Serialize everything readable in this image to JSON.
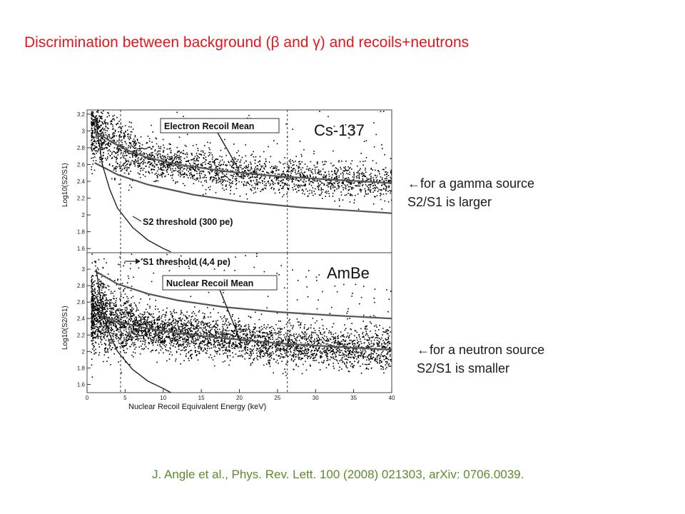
{
  "slide": {
    "title": "Discrimination between background (β and γ) and recoils+neutrons",
    "note_top": {
      "line1": "←for a gamma source",
      "line2": "S2/S1 is larger"
    },
    "note_bottom": {
      "line1": "←for a neutron source",
      "line2": "S2/S1 is smaller"
    },
    "citation": "J. Angle et al., Phys. Rev. Lett. 100 (2008) 021303, arXiv: 0706.0039."
  },
  "colors": {
    "title": "#e4161b",
    "citation": "#5c8a2e",
    "points": "#000000",
    "curves": "#555555"
  },
  "chart_data": [
    {
      "type": "scatter",
      "panel_label": "Cs-137",
      "ylabel": "Log10(S2/S1)",
      "xlabel": "",
      "xlim": [
        0,
        40
      ],
      "ylim": [
        1.55,
        3.25
      ],
      "yticks": [
        1.6,
        1.8,
        2.0,
        2.2,
        2.4,
        2.6,
        2.8,
        3.0,
        3.2
      ],
      "ytick_labels": [
        "1.6",
        "1.8",
        "2",
        "2.2",
        "2.4",
        "2.6",
        "2.8",
        "3",
        "3.2"
      ],
      "thresholds_x": [
        4.4,
        26.3
      ],
      "annotations": {
        "mean_box": "Electron Recoil Mean",
        "s2_threshold": "S2 threshold (300 pe)"
      },
      "curves": {
        "mean": [
          [
            1,
            3.0
          ],
          [
            3,
            2.88
          ],
          [
            5,
            2.78
          ],
          [
            8,
            2.68
          ],
          [
            12,
            2.6
          ],
          [
            18,
            2.52
          ],
          [
            25,
            2.46
          ],
          [
            32,
            2.42
          ],
          [
            40,
            2.38
          ]
        ],
        "lower_band": [
          [
            1,
            2.62
          ],
          [
            4,
            2.48
          ],
          [
            8,
            2.36
          ],
          [
            14,
            2.24
          ],
          [
            20,
            2.16
          ],
          [
            28,
            2.09
          ],
          [
            35,
            2.05
          ],
          [
            40,
            2.02
          ]
        ],
        "s2_threshold": [
          [
            1.2,
            3.1
          ],
          [
            2,
            2.6
          ],
          [
            3,
            2.3
          ],
          [
            4,
            2.08
          ],
          [
            6,
            1.85
          ],
          [
            8,
            1.7
          ],
          [
            10,
            1.6
          ],
          [
            11,
            1.56
          ]
        ]
      },
      "point_cloud": {
        "n": 2600,
        "center_curve": "mean",
        "spread": 0.11,
        "x_range": [
          0.5,
          40
        ]
      }
    },
    {
      "type": "scatter",
      "panel_label": "AmBe",
      "ylabel": "Log10(S2/S1)",
      "xlabel": "Nuclear Recoil Equivalent Energy (keV)",
      "xlim": [
        0,
        40
      ],
      "ylim": [
        1.5,
        3.2
      ],
      "xticks": [
        0,
        5,
        10,
        15,
        20,
        25,
        30,
        35,
        40
      ],
      "xtick_labels": [
        "0",
        "5",
        "10",
        "15",
        "20",
        "25",
        "30",
        "35",
        "40"
      ],
      "yticks": [
        1.6,
        1.8,
        2.0,
        2.2,
        2.4,
        2.6,
        2.8,
        3.0
      ],
      "ytick_labels": [
        "1.6",
        "1.8",
        "2",
        "2.2",
        "2.4",
        "2.6",
        "2.8",
        "3"
      ],
      "thresholds_x": [
        4.4,
        26.3
      ],
      "annotations": {
        "mean_box": "Nuclear Recoil Mean",
        "s1_threshold": "S1 threshold (4.4 pe)"
      },
      "curves": {
        "er_mean": [
          [
            1,
            2.98
          ],
          [
            4,
            2.82
          ],
          [
            8,
            2.7
          ],
          [
            12,
            2.62
          ],
          [
            18,
            2.54
          ],
          [
            25,
            2.48
          ],
          [
            32,
            2.44
          ],
          [
            40,
            2.4
          ]
        ],
        "nr_mean": [
          [
            1,
            2.46
          ],
          [
            4,
            2.36
          ],
          [
            8,
            2.28
          ],
          [
            12,
            2.22
          ],
          [
            18,
            2.16
          ],
          [
            25,
            2.1
          ],
          [
            32,
            2.06
          ],
          [
            40,
            2.02
          ]
        ],
        "s2_threshold": [
          [
            1.2,
            3.0
          ],
          [
            2,
            2.5
          ],
          [
            3,
            2.2
          ],
          [
            4,
            2.0
          ],
          [
            6,
            1.78
          ],
          [
            8,
            1.64
          ],
          [
            10,
            1.55
          ],
          [
            11,
            1.5
          ]
        ]
      },
      "point_cloud": {
        "n": 4200,
        "center_curve": "nr_mean",
        "spread": 0.13,
        "x_range": [
          0.5,
          40
        ]
      }
    }
  ]
}
